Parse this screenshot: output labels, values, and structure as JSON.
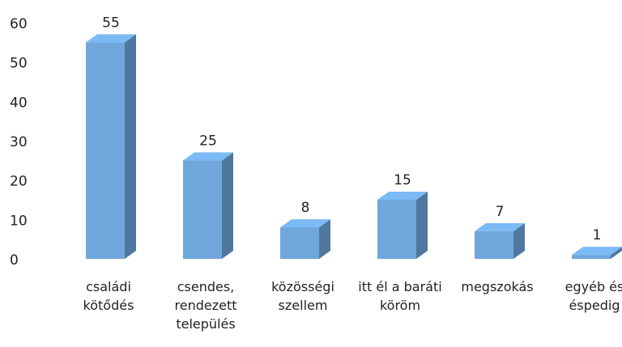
{
  "chart_data": {
    "type": "bar3d",
    "categories": [
      "családi kötődés",
      "csendes, rendezett település",
      "közösségi szellem",
      "itt él a baráti köröm",
      "megszokás",
      "egyéb és éspedig"
    ],
    "values": [
      55,
      25,
      8,
      15,
      7,
      1
    ],
    "color": "#6fa6dc",
    "ylim": [
      0,
      60
    ],
    "yticks": [
      0,
      10,
      20,
      30,
      40,
      50,
      60
    ],
    "grid": false
  }
}
